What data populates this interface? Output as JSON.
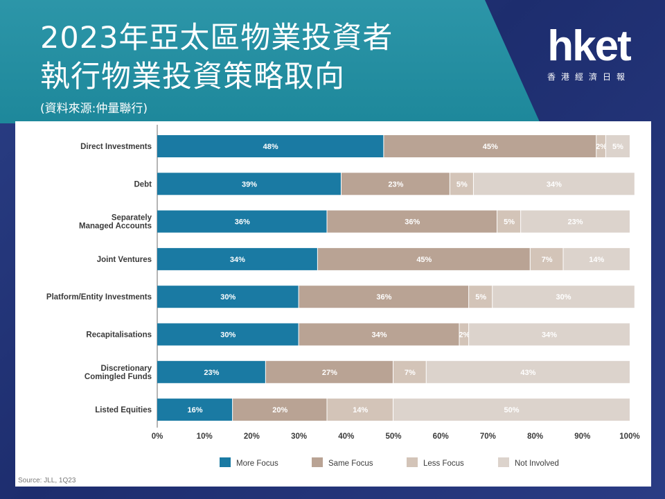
{
  "title": {
    "line1": "2023年亞太區物業投資者",
    "line2": "執行物業投資策略取向",
    "source": "(資料來源:仲量聯行)"
  },
  "logo": {
    "main": "hket",
    "sub": "香港經濟日報"
  },
  "colors": {
    "more_focus": "#1a7aa3",
    "same_focus": "#b9a394",
    "less_focus": "#d3c4b8",
    "not_involved": "#dcd3cc",
    "banner": "#1f8fa3"
  },
  "chart_data": {
    "type": "bar",
    "orientation": "horizontal-stacked",
    "categories": [
      "Direct Investments",
      "Debt",
      "Separately Managed Accounts",
      "Joint Ventures",
      "Platform/Entity Investments",
      "Recapitalisations",
      "Discretionary Comingled Funds",
      "Listed Equities"
    ],
    "category_lines": [
      [
        "Direct Investments"
      ],
      [
        "Debt"
      ],
      [
        "Separately",
        "Managed Accounts"
      ],
      [
        "Joint Ventures"
      ],
      [
        "Platform/Entity Investments"
      ],
      [
        "Recapitalisations"
      ],
      [
        "Discretionary",
        "Comingled Funds"
      ],
      [
        "Listed Equities"
      ]
    ],
    "series": [
      {
        "name": "More Focus",
        "values": [
          48,
          39,
          36,
          34,
          30,
          30,
          23,
          16
        ]
      },
      {
        "name": "Same Focus",
        "values": [
          45,
          23,
          36,
          45,
          36,
          34,
          27,
          20
        ]
      },
      {
        "name": "Less Focus",
        "values": [
          2,
          5,
          5,
          7,
          5,
          2,
          7,
          14
        ]
      },
      {
        "name": "Not Involved",
        "values": [
          5,
          34,
          23,
          14,
          30,
          34,
          43,
          50
        ]
      }
    ],
    "xlim": [
      0,
      100
    ],
    "xticks": [
      "0%",
      "10%",
      "20%",
      "30%",
      "40%",
      "50%",
      "60%",
      "70%",
      "80%",
      "90%",
      "100%"
    ],
    "legend_position": "bottom",
    "grid": false,
    "source_note": "Source: JLL, 1Q23"
  }
}
